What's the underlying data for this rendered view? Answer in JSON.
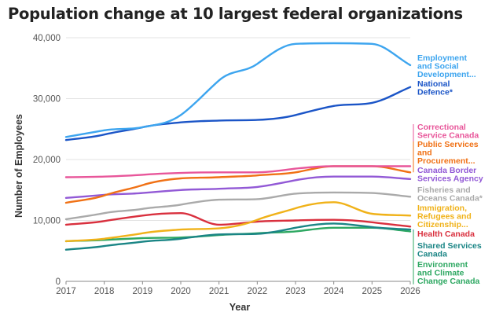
{
  "chart_data": {
    "type": "line",
    "title": "Population change at 10 largest federal organizations",
    "xlabel": "Year",
    "ylabel": "Number of Employees",
    "x": [
      2017,
      2018,
      2019,
      2020,
      2021,
      2022,
      2023,
      2024,
      2025,
      2026
    ],
    "x_tick_labels": [
      "2017",
      "2018",
      "2019",
      "2020",
      "2021",
      "2022",
      "2023",
      "2024",
      "2025",
      "2026"
    ],
    "xlim": [
      2017,
      2026
    ],
    "ylim": [
      0,
      40000
    ],
    "y_ticks": [
      0,
      10000,
      20000,
      30000,
      40000
    ],
    "y_tick_labels": [
      "0",
      "10,000",
      "20,000",
      "30,000",
      "40,000"
    ],
    "grid": "horizontal",
    "legend": "direct labels right",
    "series": [
      {
        "name": "Employment and Social Development...",
        "label_lines": [
          "Employment",
          "and Social",
          "Development..."
        ],
        "color": "#3da5ef",
        "values": [
          23700,
          24800,
          25300,
          27300,
          33000,
          35700,
          39000,
          39100,
          39000,
          35500
        ]
      },
      {
        "name": "National Defence*",
        "label_lines": [
          "National",
          "Defence*"
        ],
        "color": "#1b55c7",
        "values": [
          23200,
          24100,
          25300,
          26100,
          26400,
          26500,
          27300,
          28800,
          29300,
          31900
        ]
      },
      {
        "name": "Correctional Service Canada",
        "label_lines": [
          "Correctional",
          "Service Canada"
        ],
        "color": "#e8569a",
        "values": [
          17100,
          17200,
          17500,
          17800,
          17900,
          17900,
          18500,
          18900,
          18900,
          18900
        ]
      },
      {
        "name": "Public Services and Procurement...",
        "label_lines": [
          "Public Services",
          "and",
          "Procurement..."
        ],
        "color": "#f07115",
        "values": [
          12900,
          14100,
          15800,
          16900,
          17100,
          17400,
          17900,
          18900,
          18900,
          17900
        ]
      },
      {
        "name": "Canada Border Services Agency",
        "label_lines": [
          "Canada Border",
          "Services Agency"
        ],
        "color": "#9259d6",
        "values": [
          13700,
          14200,
          14500,
          15000,
          15200,
          15500,
          16600,
          17200,
          17200,
          16800
        ]
      },
      {
        "name": "Fisheries and Oceans Canada*",
        "label_lines": [
          "Fisheries and",
          "Oceans Canada*"
        ],
        "color": "#aaaaaa",
        "values": [
          10200,
          11200,
          11900,
          12600,
          13400,
          13500,
          14400,
          14600,
          14500,
          13900
        ]
      },
      {
        "name": "Immigration, Refugees and Citizenship...",
        "label_lines": [
          "Immigration,",
          "Refugees and",
          "Citizenship..."
        ],
        "color": "#f0b219",
        "values": [
          6600,
          7000,
          7900,
          8500,
          8700,
          10100,
          12000,
          13000,
          11100,
          10800
        ]
      },
      {
        "name": "Health Canada",
        "label_lines": [
          "Health Canada"
        ],
        "color": "#d9303e",
        "values": [
          9300,
          9900,
          10800,
          11200,
          9300,
          9800,
          10000,
          10100,
          9700,
          9000
        ]
      },
      {
        "name": "Shared Services Canada",
        "label_lines": [
          "Shared Services",
          "Canada"
        ],
        "color": "#1a8585",
        "values": [
          5200,
          5800,
          6500,
          7000,
          7700,
          7800,
          8800,
          9500,
          8900,
          8500
        ]
      },
      {
        "name": "Environment and Climate Change Canada",
        "label_lines": [
          "Environment",
          "and Climate",
          "Change Canada"
        ],
        "color": "#2ea862",
        "values": [
          6600,
          6800,
          7100,
          7200,
          7600,
          7900,
          8200,
          8800,
          8800,
          8200
        ]
      }
    ]
  }
}
